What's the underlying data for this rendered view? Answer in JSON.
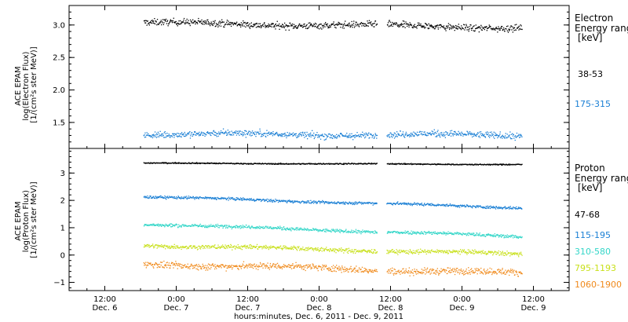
{
  "chart_data": {
    "type": "scatter",
    "xlabel": "hours:minutes, Dec.  6, 2011 - Dec.  9, 2011",
    "x_ticks": [
      {
        "time": "12:00",
        "day": "Dec. 6",
        "hours": 12
      },
      {
        "time": "0:00",
        "day": "Dec. 7",
        "hours": 24
      },
      {
        "time": "12:00",
        "day": "Dec. 7",
        "hours": 36
      },
      {
        "time": "0:00",
        "day": "Dec. 8",
        "hours": 48
      },
      {
        "time": "12:00",
        "day": "Dec. 8",
        "hours": 60
      },
      {
        "time": "0:00",
        "day": "Dec. 9",
        "hours": 72
      },
      {
        "time": "12:00",
        "day": "Dec. 9",
        "hours": 84
      }
    ],
    "xlim_hours": [
      6,
      90
    ],
    "data_gap_hours": [
      57.7,
      59.3
    ],
    "data_span_hours": [
      18.5,
      82
    ],
    "panels": [
      {
        "ylabel_lines": [
          "ACE EPAM",
          "log(Electron Flux)",
          "[1/(cm²s ster MeV)]"
        ],
        "ylim": [
          1.1,
          3.3
        ],
        "y_ticks": [
          1.5,
          2.0,
          2.5,
          3.0
        ],
        "y_tick_labels": [
          "1.5",
          "2.0",
          "2.5",
          "3.0"
        ],
        "legend_title": [
          "Electron",
          "Energy ranges",
          "[keV]"
        ],
        "series": [
          {
            "name": "38-53",
            "color": "#000000",
            "level_start": 3.04,
            "level_end": 2.97,
            "noise": 0.05
          },
          {
            "name": "175-315",
            "color": "#1a7fd4",
            "level_start": 1.33,
            "level_end": 1.31,
            "noise": 0.05
          }
        ]
      },
      {
        "ylabel_lines": [
          "ACE EPAM",
          "log(Proton Flux)",
          "[1/(cm²s ster MeV)]"
        ],
        "ylim": [
          -1.3,
          3.9
        ],
        "y_ticks": [
          -1,
          0,
          1,
          2,
          3
        ],
        "y_tick_labels": [
          "−1",
          "0",
          "1",
          "2",
          "3"
        ],
        "legend_title": [
          "Proton",
          "Energy ranges",
          "[keV]"
        ],
        "series": [
          {
            "name": "47-68",
            "color": "#000000",
            "level_start": 3.38,
            "level_end": 3.33,
            "noise": 0.02
          },
          {
            "name": "115-195",
            "color": "#1a7fd4",
            "level_start": 2.15,
            "level_end": 1.75,
            "noise": 0.05
          },
          {
            "name": "310-580",
            "color": "#33d6c8",
            "level_start": 1.15,
            "level_end": 0.7,
            "noise": 0.06
          },
          {
            "name": "795-1193",
            "color": "#c8e01a",
            "level_start": 0.38,
            "level_end": 0.05,
            "noise": 0.08
          },
          {
            "name": "1060-1900",
            "color": "#f08a1c",
            "level_start": -0.3,
            "level_end": -0.65,
            "noise": 0.12
          }
        ]
      }
    ]
  }
}
